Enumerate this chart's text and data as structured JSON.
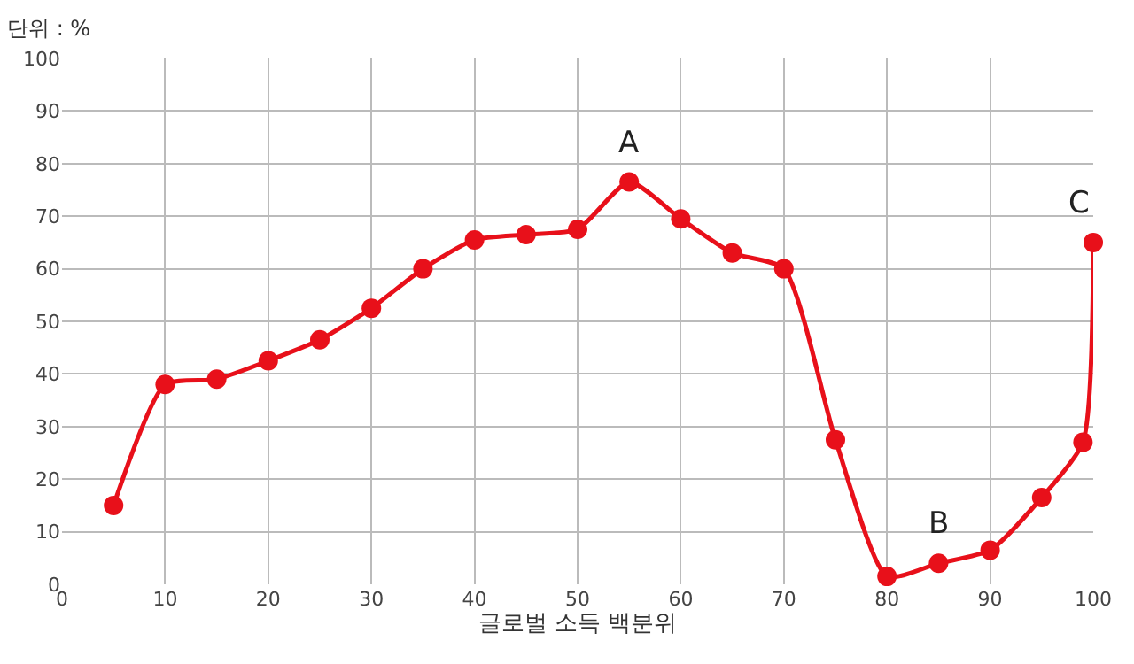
{
  "chart_data": {
    "type": "line",
    "xlabel": "글로벌 소득 백분위",
    "x": [
      5,
      10,
      15,
      20,
      25,
      30,
      35,
      40,
      45,
      50,
      55,
      60,
      65,
      70,
      75,
      80,
      85,
      90,
      95,
      99,
      100
    ],
    "series": [
      {
        "color": "#e8101a",
        "values": [
          15,
          38,
          39,
          42.5,
          46.5,
          52.5,
          60,
          65.5,
          66.5,
          67.5,
          76.5,
          69.5,
          63,
          60,
          27.5,
          1.5,
          4,
          6.5,
          16.5,
          27,
          65
        ]
      }
    ],
    "xlim": [
      0,
      100
    ],
    "xticks": [
      0,
      10,
      20,
      30,
      40,
      50,
      60,
      70,
      80,
      90,
      100
    ],
    "ylim": [
      0,
      100
    ],
    "yticks": [
      0,
      10,
      20,
      30,
      40,
      50,
      60,
      70,
      80,
      90,
      100
    ],
    "grid": true,
    "marker": "circle",
    "line_style": "solid",
    "annotations": [
      "단위 : %",
      {
        "text": "A",
        "x": 55,
        "y": 76.5
      },
      {
        "text": "B",
        "x": 85,
        "y": 4
      },
      {
        "text": "C",
        "x": 100,
        "y": 65
      }
    ]
  }
}
